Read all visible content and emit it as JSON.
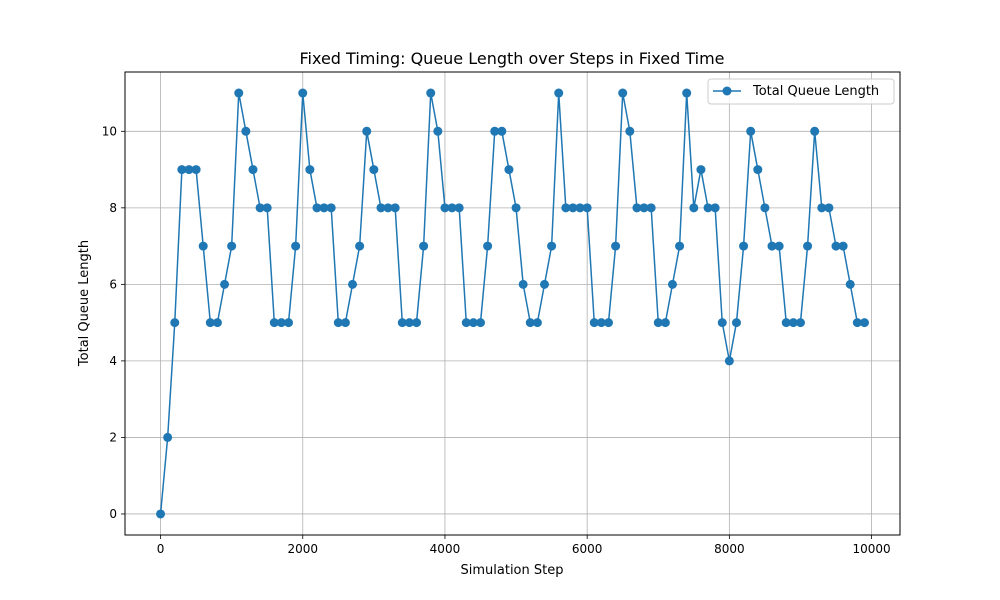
{
  "chart_data": {
    "type": "line",
    "title": "Fixed Timing: Queue Length over Steps in Fixed Time",
    "xlabel": "Simulation Step",
    "ylabel": "Total Queue Length",
    "xlim": [
      -500,
      10400
    ],
    "ylim": [
      -0.55,
      11.55
    ],
    "xticks": [
      0,
      2000,
      4000,
      6000,
      8000,
      10000
    ],
    "yticks": [
      0,
      2,
      4,
      6,
      8,
      10
    ],
    "grid": true,
    "legend_position": "top-right",
    "color": "#1f77b4",
    "series": [
      {
        "name": "Total Queue Length",
        "x": [
          0,
          100,
          200,
          300,
          400,
          500,
          600,
          700,
          800,
          900,
          1000,
          1100,
          1200,
          1300,
          1400,
          1500,
          1600,
          1700,
          1800,
          1900,
          2000,
          2100,
          2200,
          2300,
          2400,
          2500,
          2600,
          2700,
          2800,
          2900,
          3000,
          3100,
          3200,
          3300,
          3400,
          3500,
          3600,
          3700,
          3800,
          3900,
          4000,
          4100,
          4200,
          4300,
          4400,
          4500,
          4600,
          4700,
          4800,
          4900,
          5000,
          5100,
          5200,
          5300,
          5400,
          5500,
          5600,
          5700,
          5800,
          5900,
          6000,
          6100,
          6200,
          6300,
          6400,
          6500,
          6600,
          6700,
          6800,
          6900,
          7000,
          7100,
          7200,
          7300,
          7400,
          7500,
          7600,
          7700,
          7800,
          7900,
          8000,
          8100,
          8200,
          8300,
          8400,
          8500,
          8600,
          8700,
          8800,
          8900,
          9000,
          9100,
          9200,
          9300,
          9400,
          9500,
          9600,
          9700,
          9800,
          9900
        ],
        "y": [
          0,
          2,
          5,
          9,
          9,
          9,
          7,
          5,
          5,
          6,
          7,
          11,
          10,
          9,
          8,
          8,
          5,
          5,
          5,
          7,
          11,
          9,
          8,
          8,
          8,
          5,
          5,
          6,
          7,
          10,
          9,
          8,
          8,
          8,
          5,
          5,
          5,
          7,
          11,
          10,
          8,
          8,
          8,
          5,
          5,
          5,
          7,
          10,
          10,
          9,
          8,
          6,
          5,
          5,
          6,
          7,
          11,
          8,
          8,
          8,
          8,
          5,
          5,
          5,
          7,
          11,
          10,
          8,
          8,
          8,
          5,
          5,
          6,
          7,
          11,
          8,
          9,
          8,
          8,
          5,
          4,
          5,
          7,
          10,
          9,
          8,
          7,
          7,
          5,
          5,
          5,
          7,
          10,
          8,
          8,
          7,
          7,
          6,
          5,
          5
        ]
      }
    ]
  }
}
